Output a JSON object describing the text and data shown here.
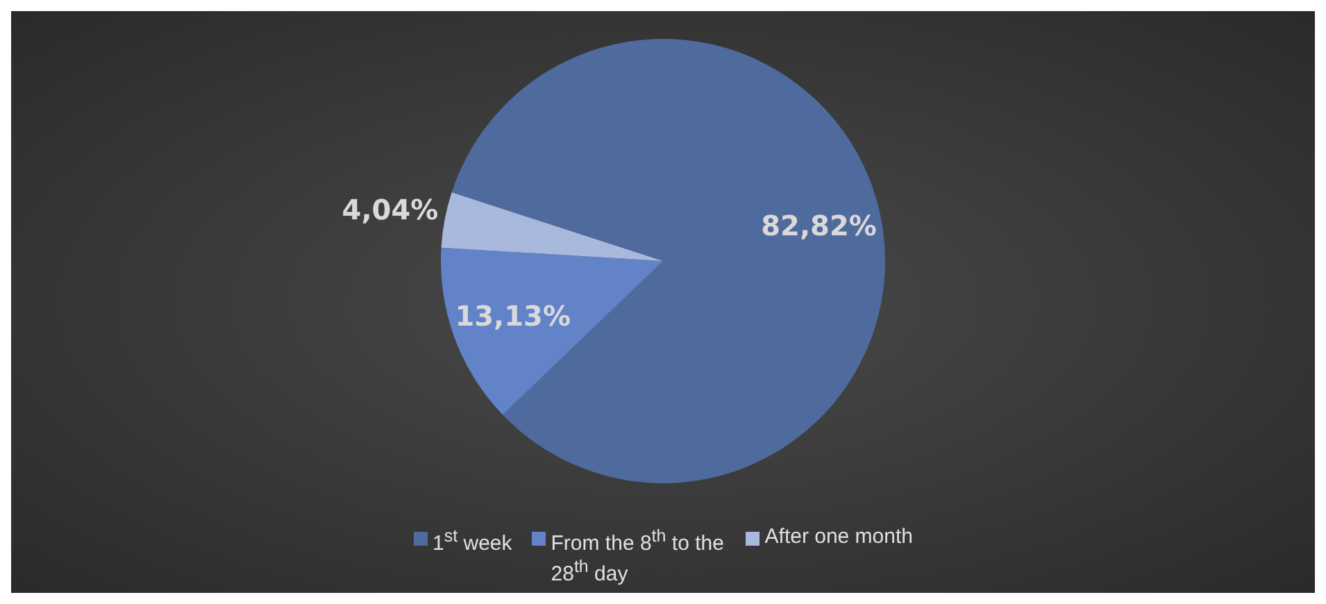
{
  "chart_data": {
    "type": "pie",
    "categories": [
      "1$^{st}$ week",
      "From the 8$^{th}$ to the 28$^{th}$ day",
      "After one month"
    ],
    "values": [
      82.82,
      13.13,
      4.04
    ],
    "colors": [
      "#4f6a9c",
      "#6283c8",
      "#a9b9de"
    ],
    "value_labels": [
      "82,82%",
      "13,13%",
      "4,04%"
    ],
    "legend": "bottom"
  }
}
